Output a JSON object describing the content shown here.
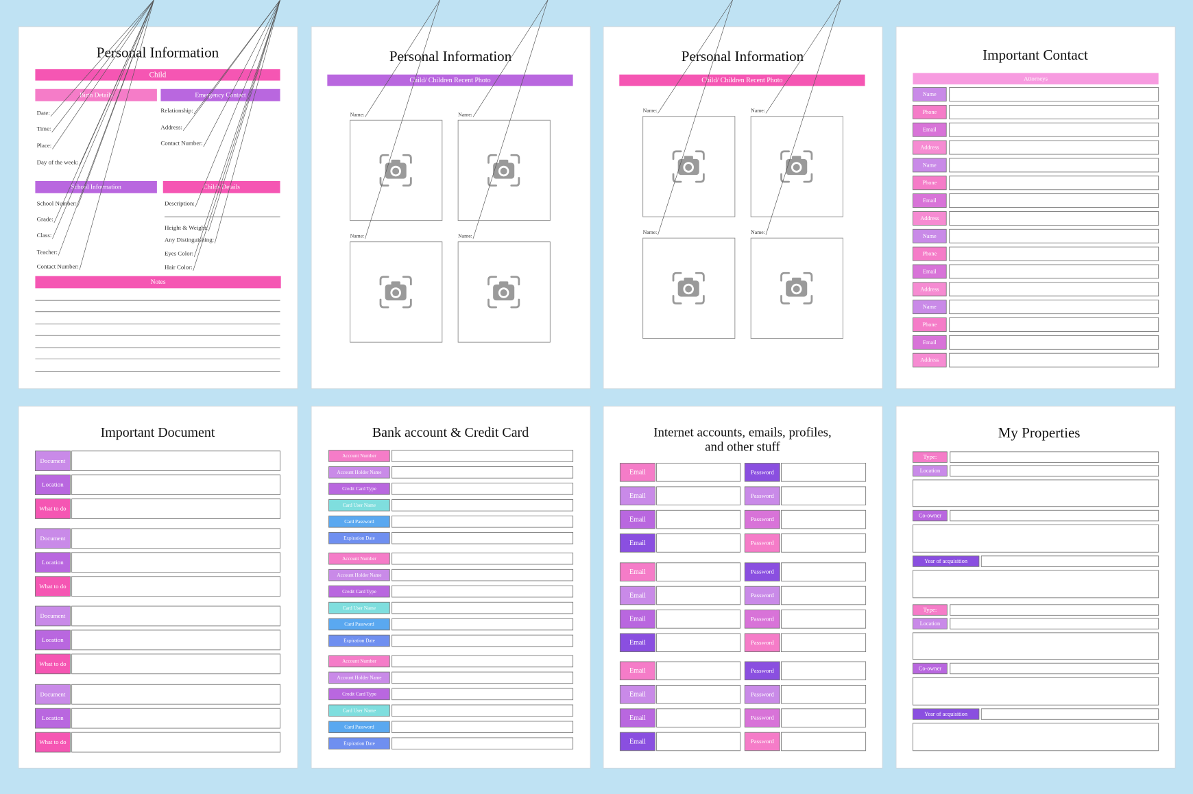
{
  "pages": [
    {
      "title": "Personal Information",
      "child": "Child",
      "birth_details": {
        "heading": "Birth Details",
        "fields": [
          "Date:",
          "Time:",
          "Place:",
          "Day of the week:"
        ]
      },
      "emergency_contact": {
        "heading": "Emergency Contact",
        "fields": [
          "Relationship:",
          "Address:",
          "Contact Number:"
        ]
      },
      "school_information": {
        "heading": "School Information",
        "fields": [
          "School Number:",
          "Grade:",
          "Class:",
          "Teacher:",
          "Contact Number:"
        ]
      },
      "childs_details": {
        "heading": "Childs Details",
        "fields": [
          "Description:",
          "Height & Weight:",
          "Any Distinguishing:",
          "Eyes Color:",
          "Hair Color:"
        ]
      },
      "notes": "Notes"
    },
    {
      "title": "Personal Information",
      "banner": "Child/ Children Recent Photo",
      "photo_labels": [
        "Name:",
        "Name:",
        "Name:",
        "Name:"
      ]
    },
    {
      "title": "Personal Information",
      "banner": "Child/ Children Recent Photo",
      "photo_labels": [
        "Name:",
        "Name:",
        "Name:",
        "Name:"
      ]
    },
    {
      "title": "Important Contact",
      "banner": "Attorneys",
      "labels": [
        "Name",
        "Phone",
        "Email",
        "Address",
        "Name",
        "Phone",
        "Email",
        "Address",
        "Name",
        "Phone",
        "Email",
        "Address",
        "Name",
        "Phone",
        "Email",
        "Address"
      ]
    },
    {
      "title": "Important Document",
      "labels": [
        "Document",
        "Location",
        "What to do",
        "Document",
        "Location",
        "What to do",
        "Document",
        "Location",
        "What to do",
        "Document",
        "Location",
        "What to do"
      ]
    },
    {
      "title": "Bank account & Credit Card",
      "labels": [
        "Account Number",
        "Account Holder Name",
        "Credit Card Type",
        "Card User Name",
        "Card Password",
        "Expiration Date",
        "Account Number",
        "Account Holder Name",
        "Credit Card Type",
        "Card User Name",
        "Card Password",
        "Expiration Date",
        "Account Number",
        "Account Holder Name",
        "Credit Card Type",
        "Card User Name",
        "Card Password",
        "Expiration Date"
      ]
    },
    {
      "title_lines": [
        "Internet accounts, emails, profiles,",
        "and other stuff"
      ],
      "email_labels": [
        "Email",
        "Email",
        "Email",
        "Email",
        "Email",
        "Email",
        "Email",
        "Email",
        "Email",
        "Email",
        "Email",
        "Email"
      ],
      "password_labels": [
        "Password",
        "Password",
        "Password",
        "Password",
        "Password",
        "Password",
        "Password",
        "Password",
        "Password",
        "Password",
        "Password",
        "Password"
      ]
    },
    {
      "title": "My Properties",
      "labels": [
        "Type:",
        "Location",
        "Co-owner",
        "Year of acquisition",
        "Type:",
        "Location",
        "Co-owner",
        "Year of acquisition"
      ]
    }
  ]
}
